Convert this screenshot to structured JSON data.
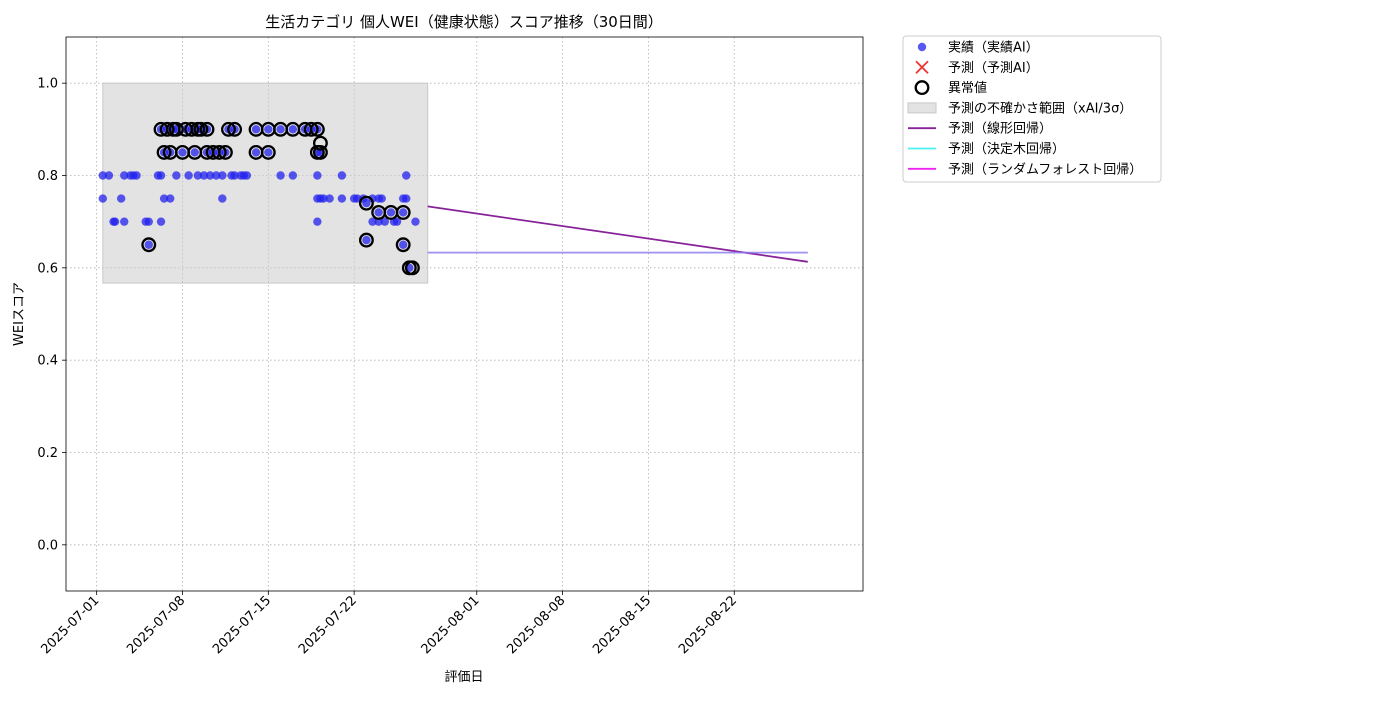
{
  "chart_data": {
    "type": "scatter",
    "title": "生活カテゴリ 個人WEI（健康状態）スコア推移（30日間）",
    "xlabel": "評価日",
    "ylabel": "WEIスコア",
    "x_ticks": [
      "2025-07-01",
      "2025-07-08",
      "2025-07-15",
      "2025-07-22",
      "2025-08-01",
      "2025-08-08",
      "2025-08-15",
      "2025-08-22"
    ],
    "y_ticks": [
      "0.0",
      "0.2",
      "0.4",
      "0.6",
      "0.8",
      "1.0"
    ],
    "x_range": [
      "2025-06-28T12:00",
      "2025-09-01T12:00"
    ],
    "ylim": [
      -0.1,
      1.1
    ],
    "grid": true,
    "legend_position": "outside-top-right",
    "colors": {
      "actual": "#2222ee",
      "predicted_ai": "#ee3333",
      "anomaly": "#000000",
      "uncertainty": "#c8c8c8",
      "linear": "#882299",
      "decision_tree": "#00eeee",
      "random_forest": "#ee22ee"
    },
    "legend": [
      {
        "key": "actual",
        "label": "実績（実績AI）",
        "marker": "circle"
      },
      {
        "key": "predicted_ai",
        "label": "予測（予測AI）",
        "marker": "x"
      },
      {
        "key": "anomaly",
        "label": "異常値",
        "marker": "ring"
      },
      {
        "key": "uncertainty",
        "label": "予測の不確かさ範囲（xAI/3σ）",
        "marker": "patch"
      },
      {
        "key": "linear",
        "label": "予測（線形回帰）",
        "marker": "line"
      },
      {
        "key": "decision_tree",
        "label": "予測（決定木回帰）",
        "marker": "line"
      },
      {
        "key": "random_forest",
        "label": "予測（ランダムフォレスト回帰）",
        "marker": "line"
      }
    ],
    "uncertainty_band": {
      "x_start": "2025-07-01T12:00",
      "x_end": "2025-07-28",
      "y_low": 0.567,
      "y_high": 1.0
    },
    "series_actual": [
      {
        "x": "2025-07-01T12:00",
        "y": 0.75
      },
      {
        "x": "2025-07-01T12:00",
        "y": 0.8
      },
      {
        "x": "2025-07-02",
        "y": 0.8
      },
      {
        "x": "2025-07-02T09:00",
        "y": 0.7
      },
      {
        "x": "2025-07-02T12:00",
        "y": 0.7
      },
      {
        "x": "2025-07-03",
        "y": 0.75
      },
      {
        "x": "2025-07-03T06:00",
        "y": 0.8
      },
      {
        "x": "2025-07-03T06:00",
        "y": 0.7
      },
      {
        "x": "2025-07-03T18:00",
        "y": 0.8
      },
      {
        "x": "2025-07-04",
        "y": 0.8
      },
      {
        "x": "2025-07-04T06:00",
        "y": 0.8
      },
      {
        "x": "2025-07-05",
        "y": 0.7
      },
      {
        "x": "2025-07-05T06:00",
        "y": 0.65
      },
      {
        "x": "2025-07-05T06:00",
        "y": 0.7
      },
      {
        "x": "2025-07-06",
        "y": 0.8
      },
      {
        "x": "2025-07-06T06:00",
        "y": 0.9
      },
      {
        "x": "2025-07-06T06:00",
        "y": 0.7
      },
      {
        "x": "2025-07-06T06:00",
        "y": 0.8
      },
      {
        "x": "2025-07-06T12:00",
        "y": 0.85
      },
      {
        "x": "2025-07-06T12:00",
        "y": 0.75
      },
      {
        "x": "2025-07-06T18:00",
        "y": 0.9
      },
      {
        "x": "2025-07-07",
        "y": 0.85
      },
      {
        "x": "2025-07-07",
        "y": 0.75
      },
      {
        "x": "2025-07-07T06:00",
        "y": 0.9
      },
      {
        "x": "2025-07-07T12:00",
        "y": 0.8
      },
      {
        "x": "2025-07-07T12:00",
        "y": 0.9
      },
      {
        "x": "2025-07-08",
        "y": 0.85
      },
      {
        "x": "2025-07-08T06:00",
        "y": 0.9
      },
      {
        "x": "2025-07-08T12:00",
        "y": 0.8
      },
      {
        "x": "2025-07-08T18:00",
        "y": 0.9
      },
      {
        "x": "2025-07-09",
        "y": 0.85
      },
      {
        "x": "2025-07-09T06:00",
        "y": 0.9
      },
      {
        "x": "2025-07-09T06:00",
        "y": 0.8
      },
      {
        "x": "2025-07-09T12:00",
        "y": 0.9
      },
      {
        "x": "2025-07-09T18:00",
        "y": 0.8
      },
      {
        "x": "2025-07-10",
        "y": 0.85
      },
      {
        "x": "2025-07-10",
        "y": 0.9
      },
      {
        "x": "2025-07-10T06:00",
        "y": 0.8
      },
      {
        "x": "2025-07-10T12:00",
        "y": 0.85
      },
      {
        "x": "2025-07-10T18:00",
        "y": 0.8
      },
      {
        "x": "2025-07-11",
        "y": 0.85
      },
      {
        "x": "2025-07-11T06:00",
        "y": 0.75
      },
      {
        "x": "2025-07-11T06:00",
        "y": 0.8
      },
      {
        "x": "2025-07-11T12:00",
        "y": 0.85
      },
      {
        "x": "2025-07-11T18:00",
        "y": 0.9
      },
      {
        "x": "2025-07-12",
        "y": 0.8
      },
      {
        "x": "2025-07-12T06:00",
        "y": 0.9
      },
      {
        "x": "2025-07-12T06:00",
        "y": 0.8
      },
      {
        "x": "2025-07-12T18:00",
        "y": 0.8
      },
      {
        "x": "2025-07-13",
        "y": 0.8
      },
      {
        "x": "2025-07-13T06:00",
        "y": 0.8
      },
      {
        "x": "2025-07-14",
        "y": 0.85
      },
      {
        "x": "2025-07-14",
        "y": 0.9
      },
      {
        "x": "2025-07-15",
        "y": 0.85
      },
      {
        "x": "2025-07-15",
        "y": 0.9
      },
      {
        "x": "2025-07-16",
        "y": 0.8
      },
      {
        "x": "2025-07-16",
        "y": 0.9
      },
      {
        "x": "2025-07-17",
        "y": 0.8
      },
      {
        "x": "2025-07-17",
        "y": 0.9
      },
      {
        "x": "2025-07-18",
        "y": 0.9
      },
      {
        "x": "2025-07-18T12:00",
        "y": 0.9
      },
      {
        "x": "2025-07-19",
        "y": 0.85
      },
      {
        "x": "2025-07-19",
        "y": 0.8
      },
      {
        "x": "2025-07-19",
        "y": 0.75
      },
      {
        "x": "2025-07-19",
        "y": 0.7
      },
      {
        "x": "2025-07-19",
        "y": 0.9
      },
      {
        "x": "2025-07-19T06:00",
        "y": 0.85
      },
      {
        "x": "2025-07-19T06:00",
        "y": 0.75
      },
      {
        "x": "2025-07-19T12:00",
        "y": 0.75
      },
      {
        "x": "2025-07-20",
        "y": 0.75
      },
      {
        "x": "2025-07-21",
        "y": 0.8
      },
      {
        "x": "2025-07-21",
        "y": 0.75
      },
      {
        "x": "2025-07-22",
        "y": 0.75
      },
      {
        "x": "2025-07-22T06:00",
        "y": 0.75
      },
      {
        "x": "2025-07-22T18:00",
        "y": 0.75
      },
      {
        "x": "2025-07-23",
        "y": 0.74
      },
      {
        "x": "2025-07-23",
        "y": 0.66
      },
      {
        "x": "2025-07-23T12:00",
        "y": 0.7
      },
      {
        "x": "2025-07-23T12:00",
        "y": 0.75
      },
      {
        "x": "2025-07-24",
        "y": 0.72
      },
      {
        "x": "2025-07-24",
        "y": 0.7
      },
      {
        "x": "2025-07-24",
        "y": 0.75
      },
      {
        "x": "2025-07-24T06:00",
        "y": 0.75
      },
      {
        "x": "2025-07-24T12:00",
        "y": 0.7
      },
      {
        "x": "2025-07-25",
        "y": 0.72
      },
      {
        "x": "2025-07-25T06:00",
        "y": 0.7
      },
      {
        "x": "2025-07-25T12:00",
        "y": 0.7
      },
      {
        "x": "2025-07-26",
        "y": 0.65
      },
      {
        "x": "2025-07-26",
        "y": 0.72
      },
      {
        "x": "2025-07-26",
        "y": 0.75
      },
      {
        "x": "2025-07-26T06:00",
        "y": 0.75
      },
      {
        "x": "2025-07-26T06:00",
        "y": 0.8
      },
      {
        "x": "2025-07-26T12:00",
        "y": 0.6
      },
      {
        "x": "2025-07-27",
        "y": 0.7
      }
    ],
    "series_anomaly": [
      {
        "x": "2025-07-05T06:00",
        "y": 0.65
      },
      {
        "x": "2025-07-06T06:00",
        "y": 0.9
      },
      {
        "x": "2025-07-06T12:00",
        "y": 0.85
      },
      {
        "x": "2025-07-06T18:00",
        "y": 0.9
      },
      {
        "x": "2025-07-07",
        "y": 0.85
      },
      {
        "x": "2025-07-07T06:00",
        "y": 0.9
      },
      {
        "x": "2025-07-07T12:00",
        "y": 0.9
      },
      {
        "x": "2025-07-08",
        "y": 0.85
      },
      {
        "x": "2025-07-08T06:00",
        "y": 0.9
      },
      {
        "x": "2025-07-08T18:00",
        "y": 0.9
      },
      {
        "x": "2025-07-09",
        "y": 0.85
      },
      {
        "x": "2025-07-09T06:00",
        "y": 0.9
      },
      {
        "x": "2025-07-09T12:00",
        "y": 0.9
      },
      {
        "x": "2025-07-10",
        "y": 0.85
      },
      {
        "x": "2025-07-10",
        "y": 0.9
      },
      {
        "x": "2025-07-10T12:00",
        "y": 0.85
      },
      {
        "x": "2025-07-11",
        "y": 0.85
      },
      {
        "x": "2025-07-11T12:00",
        "y": 0.85
      },
      {
        "x": "2025-07-11T18:00",
        "y": 0.9
      },
      {
        "x": "2025-07-12T06:00",
        "y": 0.9
      },
      {
        "x": "2025-07-14",
        "y": 0.85
      },
      {
        "x": "2025-07-14",
        "y": 0.9
      },
      {
        "x": "2025-07-15",
        "y": 0.85
      },
      {
        "x": "2025-07-15",
        "y": 0.9
      },
      {
        "x": "2025-07-16",
        "y": 0.9
      },
      {
        "x": "2025-07-17",
        "y": 0.9
      },
      {
        "x": "2025-07-18",
        "y": 0.9
      },
      {
        "x": "2025-07-18T12:00",
        "y": 0.9
      },
      {
        "x": "2025-07-19",
        "y": 0.85
      },
      {
        "x": "2025-07-19",
        "y": 0.9
      },
      {
        "x": "2025-07-19T06:00",
        "y": 0.87
      },
      {
        "x": "2025-07-19T06:00",
        "y": 0.85
      },
      {
        "x": "2025-07-23",
        "y": 0.74
      },
      {
        "x": "2025-07-23",
        "y": 0.66
      },
      {
        "x": "2025-07-24",
        "y": 0.72
      },
      {
        "x": "2025-07-25",
        "y": 0.72
      },
      {
        "x": "2025-07-26",
        "y": 0.65
      },
      {
        "x": "2025-07-26",
        "y": 0.72
      },
      {
        "x": "2025-07-26T12:00",
        "y": 0.6
      },
      {
        "x": "2025-07-26T18:00",
        "y": 0.6
      }
    ],
    "series_linear": [
      {
        "x": "2025-07-28",
        "y": 0.733
      },
      {
        "x": "2025-08-28",
        "y": 0.613
      }
    ],
    "series_decision_tree": [
      {
        "x": "2025-07-28",
        "y": 0.633
      },
      {
        "x": "2025-08-28",
        "y": 0.633
      }
    ],
    "series_random_forest": [
      {
        "x": "2025-07-28",
        "y": 0.633
      },
      {
        "x": "2025-08-28",
        "y": 0.633
      }
    ]
  }
}
